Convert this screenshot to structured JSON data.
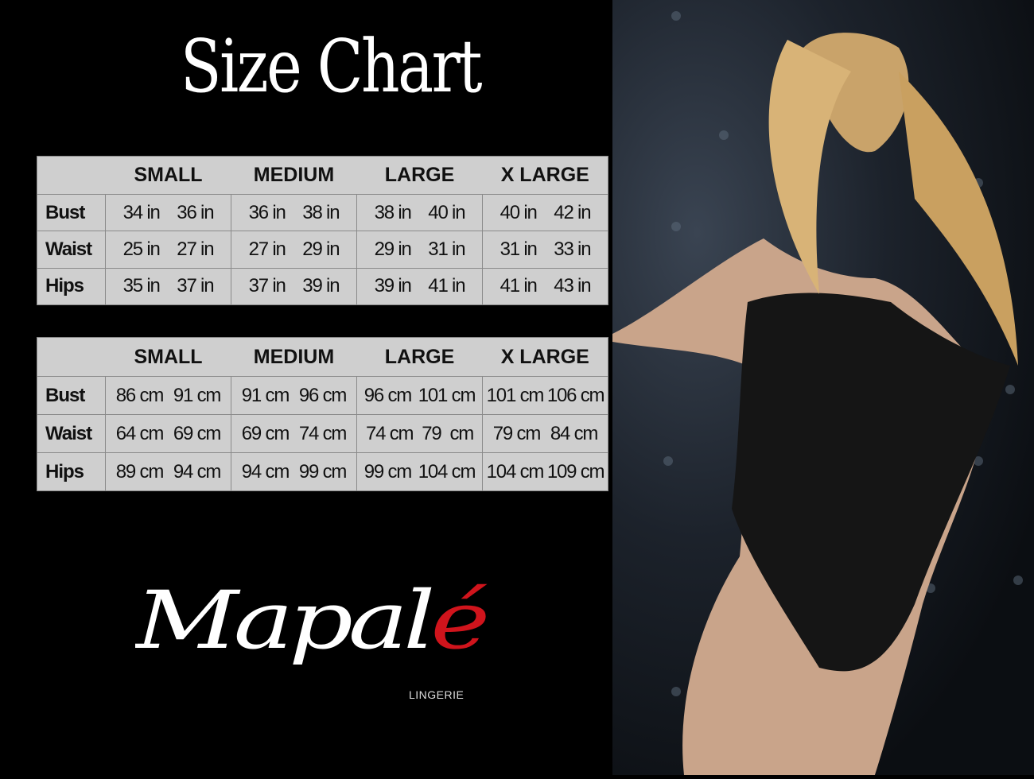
{
  "title": "Size Chart",
  "sizes": [
    "SMALL",
    "MEDIUM",
    "LARGE",
    "X LARGE"
  ],
  "inches_table": {
    "rows": [
      {
        "label": "Bust",
        "values": [
          "34 in",
          "36 in",
          "36 in",
          "38 in",
          "38 in",
          "40 in",
          "40 in",
          "42 in"
        ]
      },
      {
        "label": "Waist",
        "values": [
          "25 in",
          "27 in",
          "27 in",
          "29 in",
          "29 in",
          "31 in",
          "31 in",
          "33 in"
        ]
      },
      {
        "label": "Hips",
        "values": [
          "35 in",
          "37 in",
          "37 in",
          "39 in",
          "39 in",
          "41 in",
          "41 in",
          "43 in"
        ]
      }
    ]
  },
  "cm_table": {
    "rows": [
      {
        "label": "Bust",
        "values": [
          "86 cm",
          "91 cm",
          "91 cm",
          "96 cm",
          "96 cm",
          "101 cm",
          "101 cm",
          "106 cm"
        ]
      },
      {
        "label": "Waist",
        "values": [
          "64 cm",
          "69 cm",
          "69 cm",
          "74 cm",
          "74 cm",
          "79  cm",
          "79 cm",
          "84 cm"
        ]
      },
      {
        "label": "Hips",
        "values": [
          "89 cm",
          "94 cm",
          "94 cm",
          "99 cm",
          "99 cm",
          "104 cm",
          "104 cm",
          "109 cm"
        ]
      }
    ]
  },
  "brand": {
    "name": "Mapalé",
    "tagline": "LINGERIE",
    "accent": "#d0141c"
  },
  "colors": {
    "background": "#000000",
    "table": "#cfcfcf"
  }
}
